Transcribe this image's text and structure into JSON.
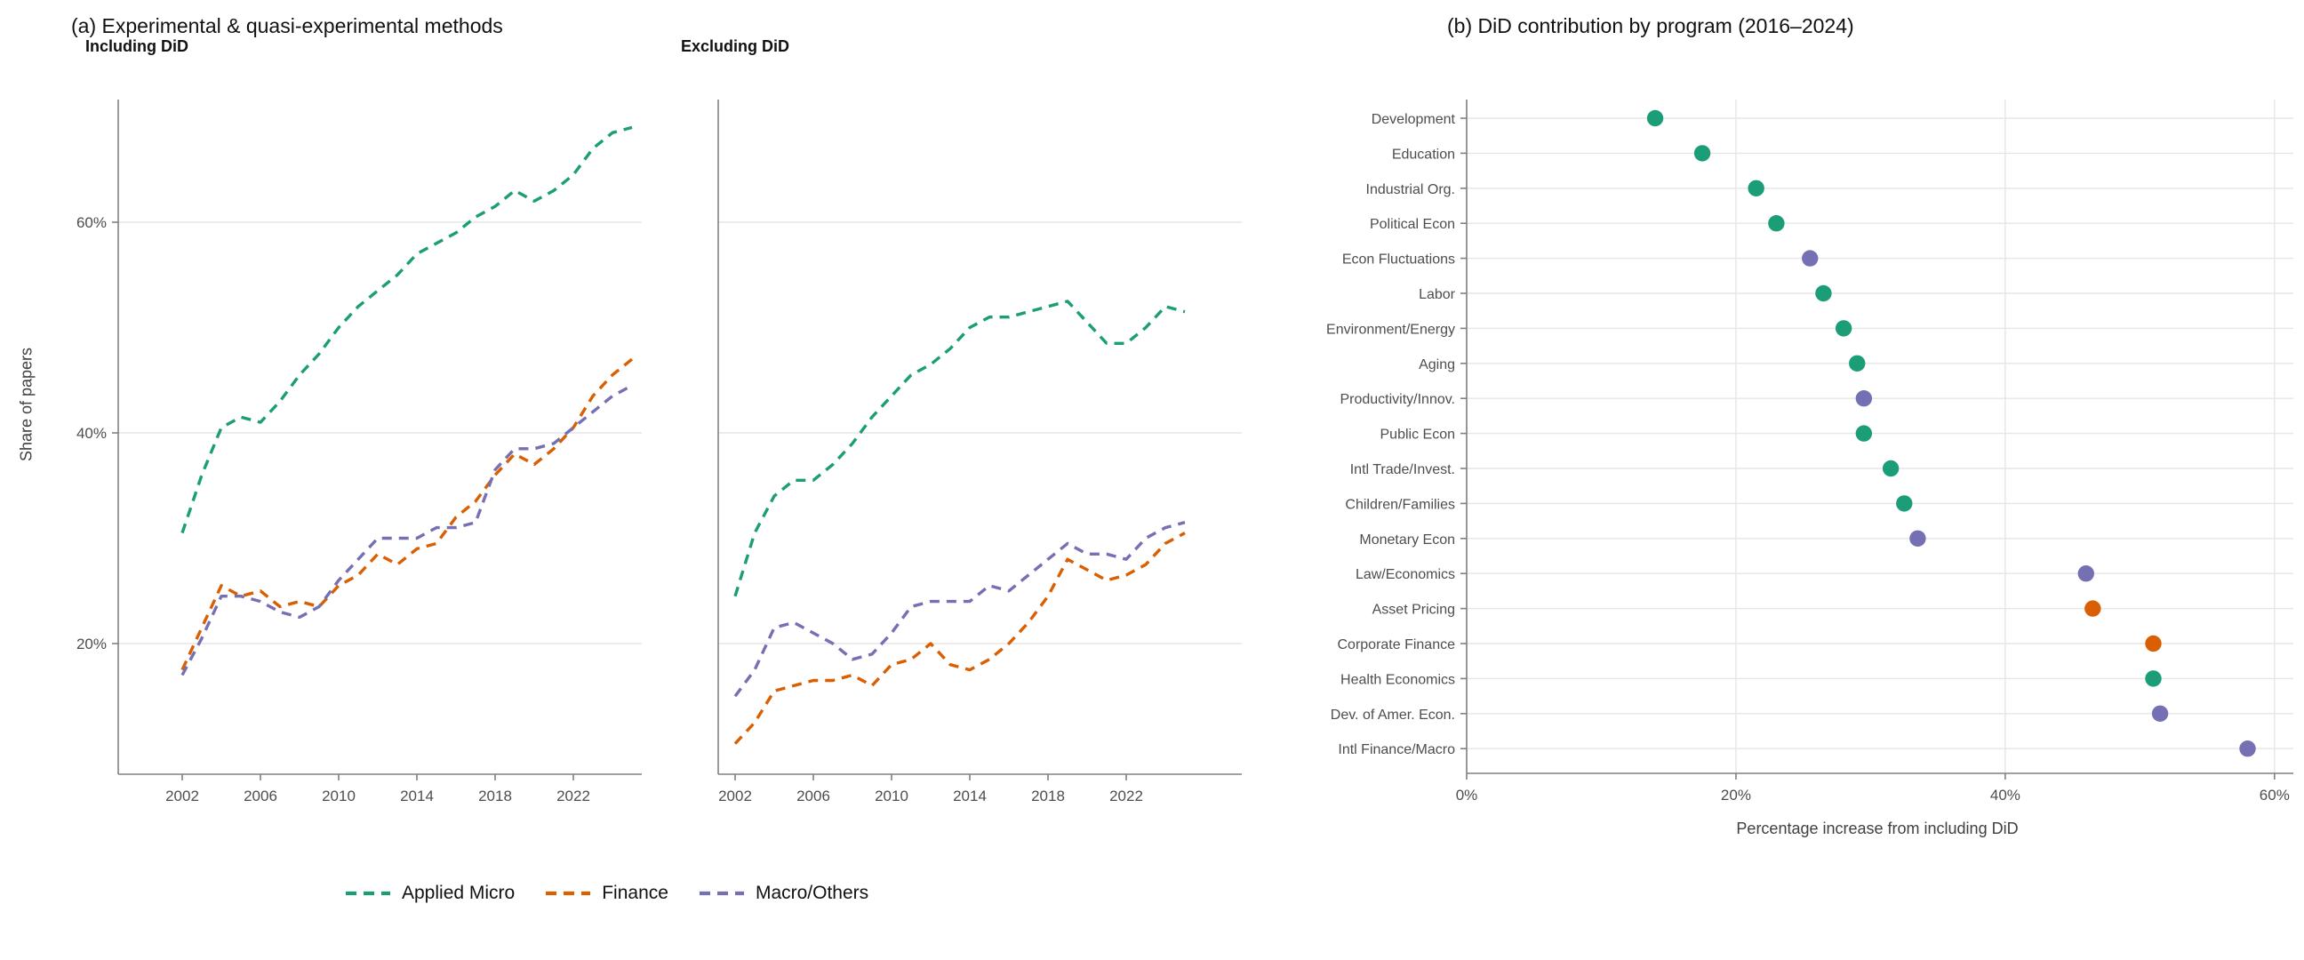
{
  "panel_a": {
    "title": "(a) Experimental & quasi-experimental methods",
    "ylabel": "Share of papers",
    "subpanels": [
      {
        "subtitle": "Including DiD"
      },
      {
        "subtitle": "Excluding DiD"
      }
    ],
    "legend": [
      {
        "label": "Applied Micro",
        "color": "#1b9e77"
      },
      {
        "label": "Finance",
        "color": "#d95f02"
      },
      {
        "label": "Macro/Others",
        "color": "#7570b3"
      }
    ]
  },
  "panel_b": {
    "title": "(b) DiD contribution by program (2016–2024)",
    "xlabel": "Percentage increase from including DiD"
  },
  "palette": {
    "Applied Micro": "#1b9e77",
    "Finance": "#d95f02",
    "Macro/Others": "#7570b3"
  },
  "style_colors": {
    "gridline": "#e6e6e6",
    "axis": "#808080",
    "tick_text": "#4d4d4d"
  },
  "chart_data": [
    {
      "type": "line",
      "title": "Including DiD",
      "xlabel": "",
      "ylabel": "Share of papers",
      "x": [
        2002,
        2003,
        2004,
        2005,
        2006,
        2007,
        2008,
        2009,
        2010,
        2011,
        2012,
        2013,
        2014,
        2015,
        2016,
        2017,
        2018,
        2019,
        2020,
        2021,
        2022,
        2023,
        2024,
        2025
      ],
      "xticks": [
        2002,
        2006,
        2010,
        2014,
        2018,
        2022
      ],
      "yticks": [
        20,
        40,
        60
      ],
      "ylim": [
        7.5,
        72
      ],
      "ytick_suffix": "%",
      "grid": "horizontal",
      "legend_position": "bottom",
      "series": [
        {
          "name": "Applied Micro",
          "values": [
            30.5,
            36,
            40.5,
            41.5,
            41,
            43,
            45.5,
            47.5,
            50,
            52,
            53.5,
            55,
            57,
            58,
            59,
            60.5,
            61.5,
            63,
            62,
            63,
            64.5,
            67,
            68.5,
            69
          ]
        },
        {
          "name": "Finance",
          "values": [
            17.5,
            21.5,
            25.5,
            24.5,
            25,
            23.5,
            24,
            23.5,
            25.5,
            26.5,
            28.5,
            27.5,
            29,
            29.5,
            32,
            33.5,
            36,
            38,
            37,
            38.5,
            40.5,
            43.5,
            45.5,
            47
          ]
        },
        {
          "name": "Macro/Others",
          "values": [
            17,
            20.5,
            24.5,
            24.5,
            24,
            23,
            22.5,
            23.5,
            26,
            28,
            30,
            30,
            30,
            31,
            31,
            31.5,
            36.5,
            38.5,
            38.5,
            39,
            40.5,
            42,
            43.5,
            44.5
          ]
        }
      ]
    },
    {
      "type": "line",
      "title": "Excluding DiD",
      "xlabel": "",
      "ylabel": "Share of papers",
      "x": [
        2002,
        2003,
        2004,
        2005,
        2006,
        2007,
        2008,
        2009,
        2010,
        2011,
        2012,
        2013,
        2014,
        2015,
        2016,
        2017,
        2018,
        2019,
        2020,
        2021,
        2022,
        2023,
        2024,
        2025
      ],
      "xticks": [
        2002,
        2006,
        2010,
        2014,
        2018,
        2022
      ],
      "yticks": [
        20,
        40,
        60
      ],
      "ylim": [
        7.5,
        72
      ],
      "ytick_suffix": "%",
      "grid": "horizontal",
      "legend_position": "bottom",
      "series": [
        {
          "name": "Applied Micro",
          "values": [
            24.5,
            30.5,
            34,
            35.5,
            35.5,
            37,
            39,
            41.5,
            43.5,
            45.5,
            46.5,
            48,
            50,
            51,
            51,
            51.5,
            52,
            52.5,
            50.5,
            48.5,
            48.5,
            50,
            52,
            51.5
          ]
        },
        {
          "name": "Finance",
          "values": [
            10.5,
            12.5,
            15.5,
            16,
            16.5,
            16.5,
            17,
            16,
            18,
            18.5,
            20,
            18,
            17.5,
            18.5,
            20,
            22,
            24.5,
            28,
            27,
            26,
            26.5,
            27.5,
            29.5,
            30.5
          ]
        },
        {
          "name": "Macro/Others",
          "values": [
            15,
            17.5,
            21.5,
            22,
            21,
            20,
            18.5,
            19,
            21,
            23.5,
            24,
            24,
            24,
            25.5,
            25,
            26.5,
            28,
            29.5,
            28.5,
            28.5,
            28,
            30,
            31,
            31.5
          ]
        }
      ]
    },
    {
      "type": "scatter",
      "title": "(b) DiD contribution by program (2016–2024)",
      "xlabel": "Percentage increase from including DiD",
      "xlim": [
        0,
        62
      ],
      "xticks": [
        0,
        20,
        40,
        60
      ],
      "xtick_suffix": "%",
      "grid": "both",
      "categories": [
        "Development",
        "Education",
        "Industrial Org.",
        "Political Econ",
        "Econ Fluctuations",
        "Labor",
        "Environment/Energy",
        "Aging",
        "Productivity/Innov.",
        "Public Econ",
        "Intl Trade/Invest.",
        "Children/Families",
        "Monetary Econ",
        "Law/Economics",
        "Asset Pricing",
        "Corporate Finance",
        "Health Economics",
        "Dev. of Amer. Econ.",
        "Intl Finance/Macro"
      ],
      "values": [
        14,
        17.5,
        21.5,
        23,
        25.5,
        26.5,
        28,
        29,
        29.5,
        29.5,
        31.5,
        32.5,
        33.5,
        46,
        46.5,
        51,
        51,
        51.5,
        58
      ],
      "groups": [
        "Applied Micro",
        "Applied Micro",
        "Applied Micro",
        "Applied Micro",
        "Macro/Others",
        "Applied Micro",
        "Applied Micro",
        "Applied Micro",
        "Macro/Others",
        "Applied Micro",
        "Applied Micro",
        "Applied Micro",
        "Macro/Others",
        "Macro/Others",
        "Finance",
        "Finance",
        "Applied Micro",
        "Macro/Others",
        "Macro/Others"
      ]
    }
  ]
}
